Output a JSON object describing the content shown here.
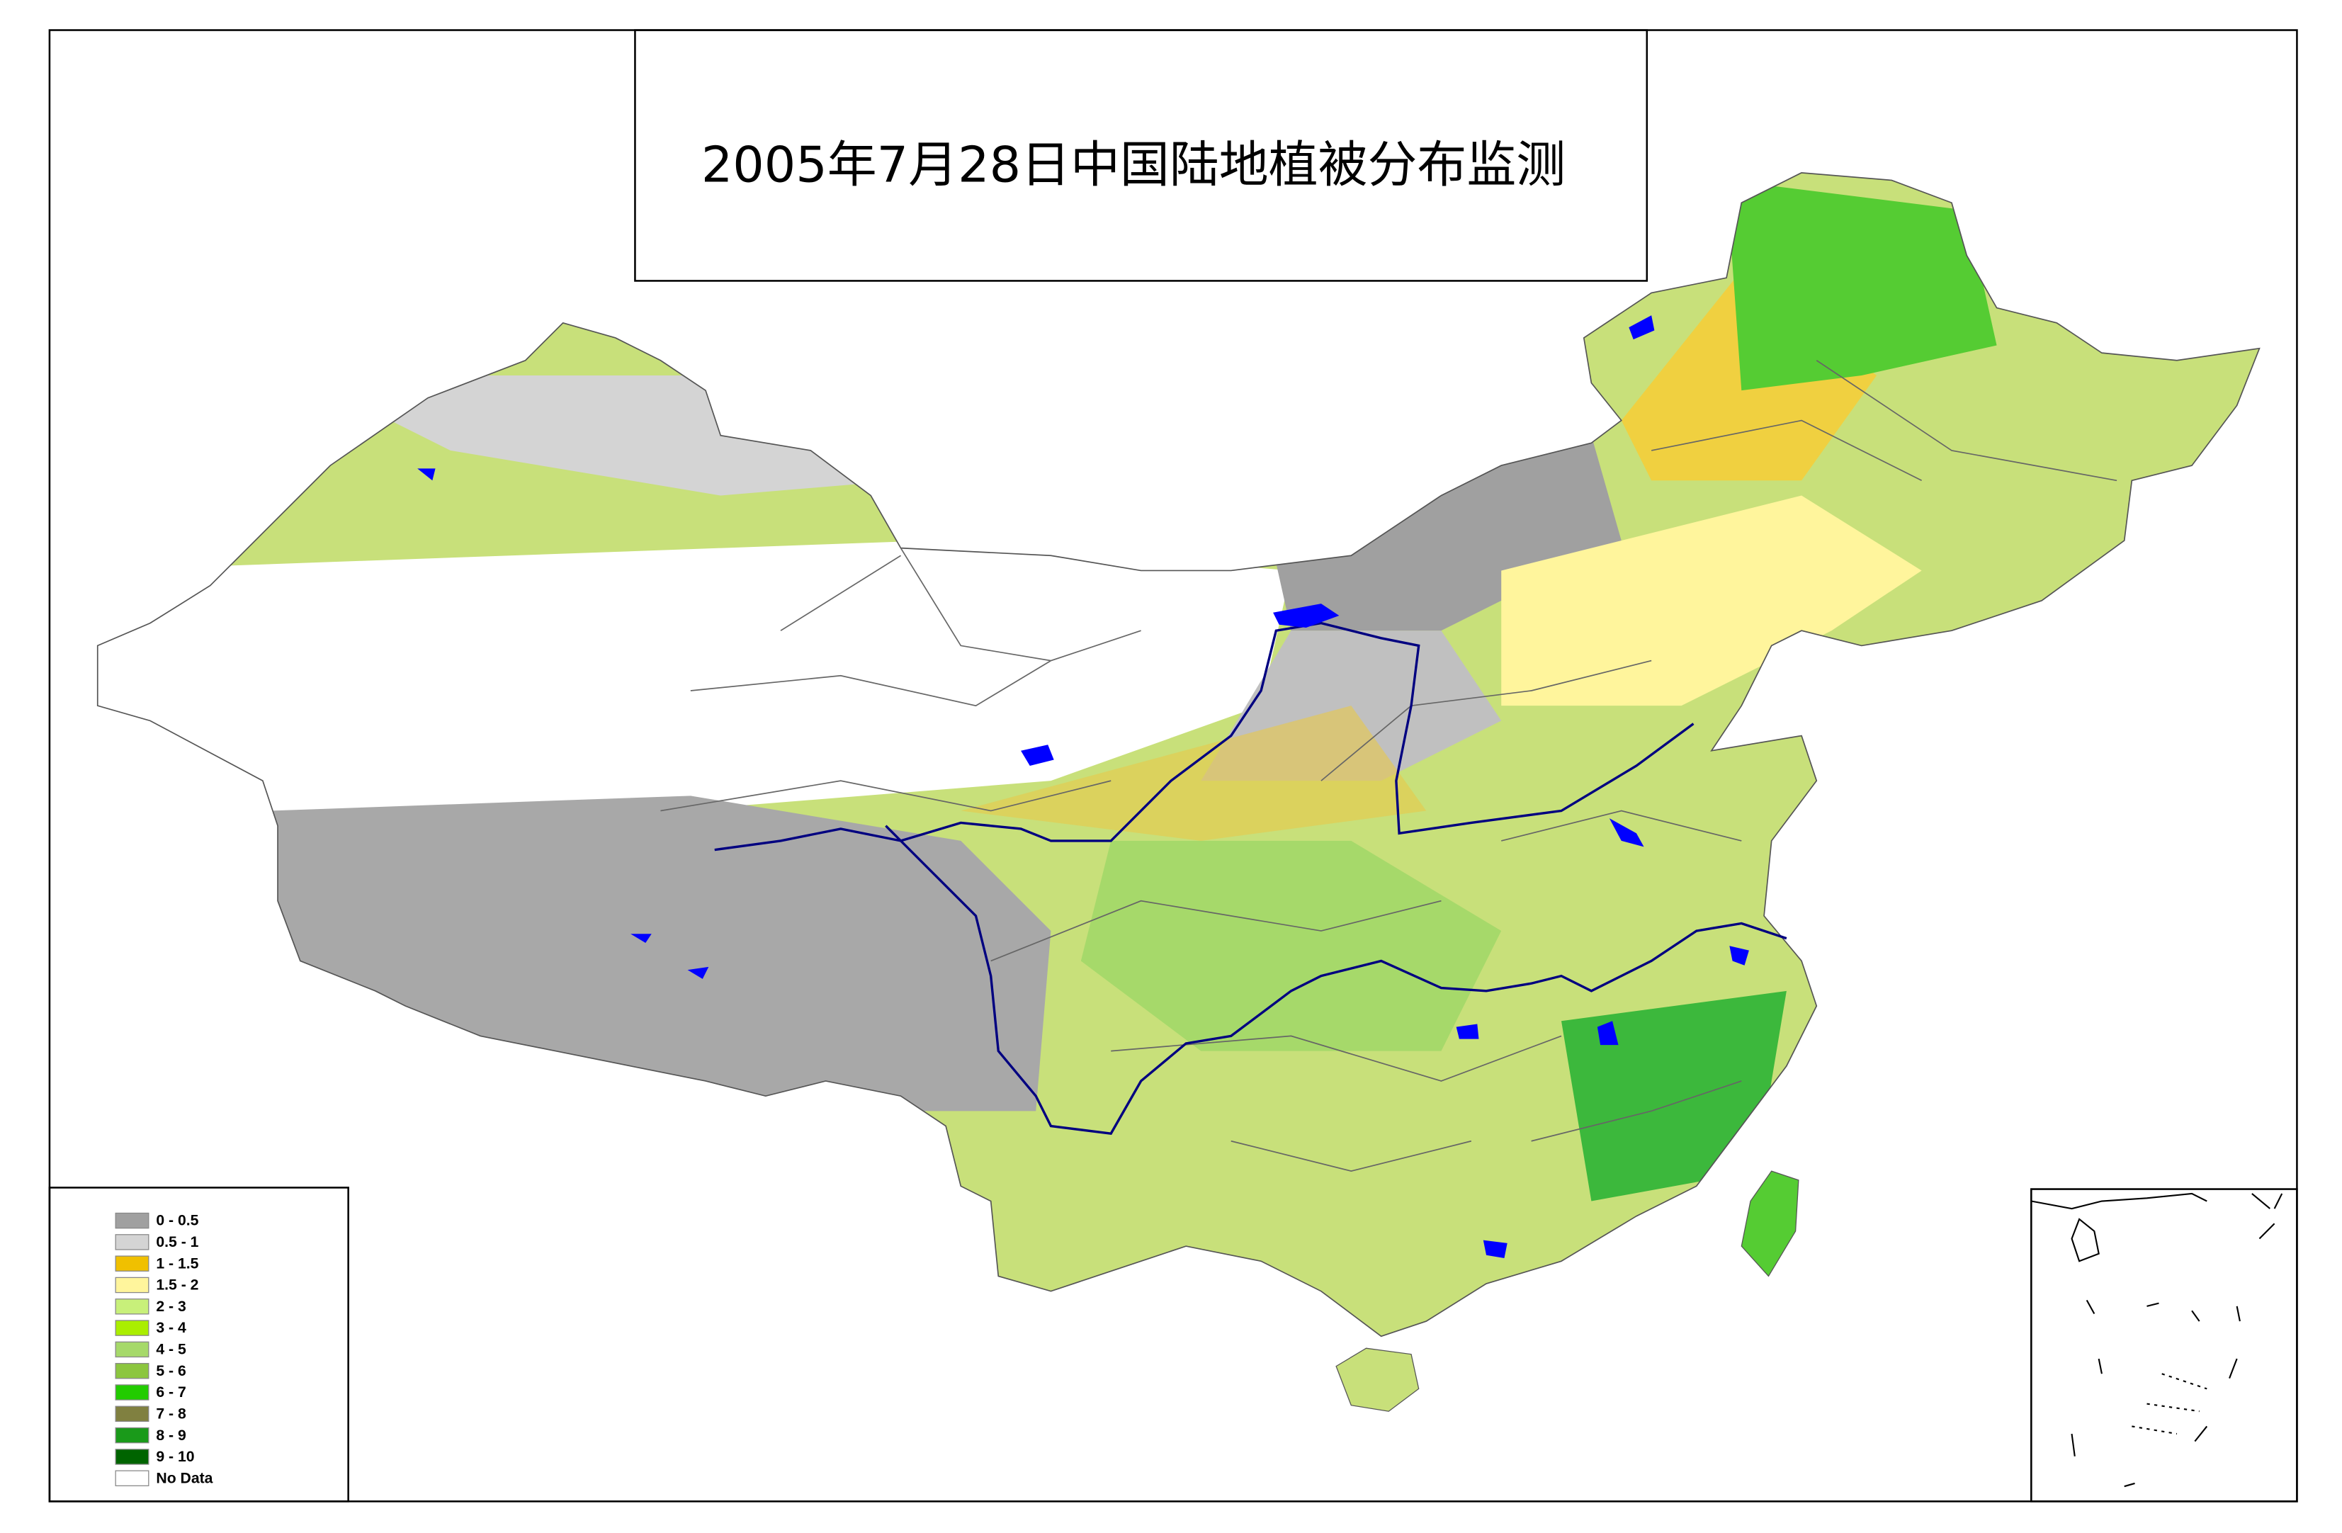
{
  "title": "2005年7月28日中国陆地植被分布监测",
  "legend": [
    {
      "label": "0 - 0.5",
      "color": "#a0a0a0"
    },
    {
      "label": "0.5 - 1",
      "color": "#d4d4d4"
    },
    {
      "label": "1 - 1.5",
      "color": "#f0c000"
    },
    {
      "label": "1.5 - 2",
      "color": "#fff59c"
    },
    {
      "label": "2 - 3",
      "color": "#c8f07a"
    },
    {
      "label": "3 - 4",
      "color": "#aaee00"
    },
    {
      "label": "4 - 5",
      "color": "#a6d96a"
    },
    {
      "label": "5 - 6",
      "color": "#8cc63f"
    },
    {
      "label": "6 - 7",
      "color": "#22cc00"
    },
    {
      "label": "7 - 8",
      "color": "#808040"
    },
    {
      "label": "8 - 9",
      "color": "#1a9a1a"
    },
    {
      "label": "9 - 10",
      "color": "#006400"
    },
    {
      "label": "No Data",
      "color": "#ffffff"
    }
  ]
}
